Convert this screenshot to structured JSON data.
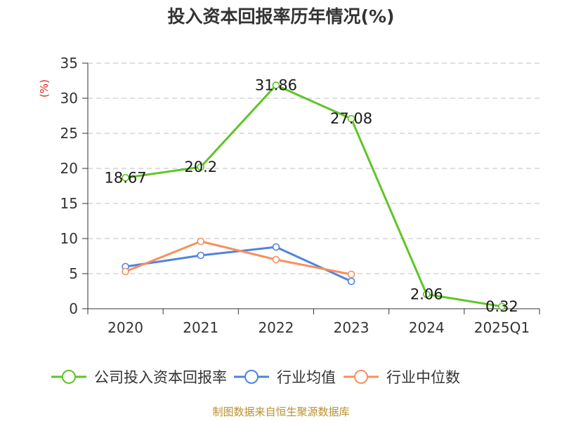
{
  "chart_data": {
    "type": "line",
    "title": "投入资本回报率历年情况(%)",
    "ylabel": "(%)",
    "xlabel": "",
    "categories": [
      "2020",
      "2021",
      "2022",
      "2023",
      "2024",
      "2025Q1"
    ],
    "ylim": [
      0,
      35
    ],
    "yticks": [
      0,
      5,
      10,
      15,
      20,
      25,
      30,
      35
    ],
    "grid": true,
    "legend_position": "bottom",
    "series": [
      {
        "name": "公司投入资本回报率",
        "color": "#5ec525",
        "values": [
          18.67,
          20.2,
          31.86,
          27.08,
          2.06,
          0.32
        ],
        "show_labels": true
      },
      {
        "name": "行业均值",
        "color": "#4f83e0",
        "values": [
          6.0,
          7.6,
          8.8,
          3.9,
          null,
          null
        ],
        "show_labels": false
      },
      {
        "name": "行业中位数",
        "color": "#f7905c",
        "values": [
          5.3,
          9.6,
          7.0,
          4.9,
          null,
          null
        ],
        "show_labels": false
      }
    ]
  },
  "source_note": "制图数据来自恒生聚源数据库"
}
